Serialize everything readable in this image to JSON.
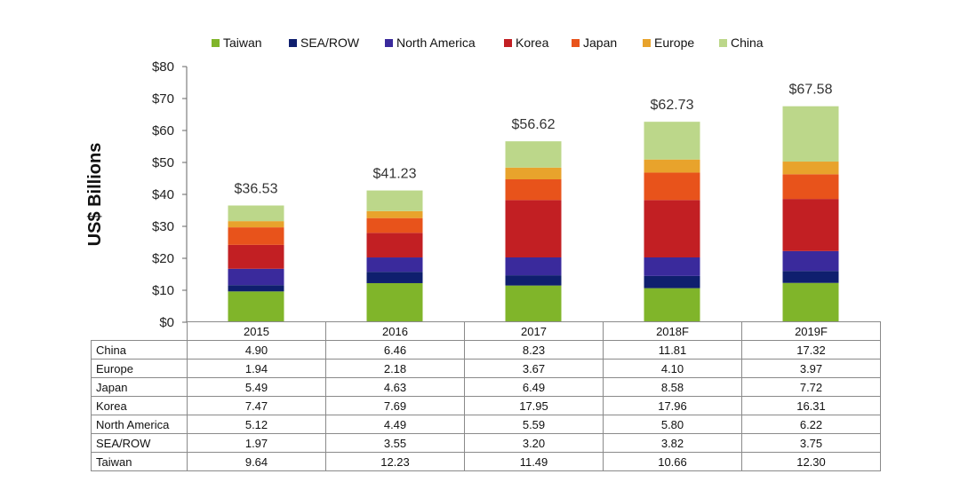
{
  "chart_data": {
    "type": "bar",
    "stacked": true,
    "categories": [
      "2015",
      "2016",
      "2017",
      "2018F",
      "2019F"
    ],
    "series": [
      {
        "name": "Taiwan",
        "color": "#80b52a",
        "values": [
          9.64,
          12.23,
          11.49,
          10.66,
          12.3
        ]
      },
      {
        "name": "SEA/ROW",
        "color": "#0f1f6e",
        "values": [
          1.97,
          3.55,
          3.2,
          3.82,
          3.75
        ]
      },
      {
        "name": "North America",
        "color": "#3a2a9c",
        "values": [
          5.12,
          4.49,
          5.59,
          5.8,
          6.22
        ]
      },
      {
        "name": "Korea",
        "color": "#c21f23",
        "values": [
          7.47,
          7.69,
          17.95,
          17.96,
          16.31
        ]
      },
      {
        "name": "Japan",
        "color": "#e8531b",
        "values": [
          5.49,
          4.63,
          6.49,
          8.58,
          7.72
        ]
      },
      {
        "name": "Europe",
        "color": "#e8a32c",
        "values": [
          1.94,
          2.18,
          3.67,
          4.1,
          3.97
        ]
      },
      {
        "name": "China",
        "color": "#bcd78a",
        "values": [
          4.9,
          6.46,
          8.23,
          11.81,
          17.32
        ]
      }
    ],
    "totals": [
      "$36.53",
      "$41.23",
      "$56.62",
      "$62.73",
      "$67.58"
    ],
    "ylabel": "US$ Billions",
    "ylim": [
      0,
      80
    ],
    "yticks": [
      {
        "value": 0,
        "label": "$0"
      },
      {
        "value": 10,
        "label": "$10"
      },
      {
        "value": 20,
        "label": "$20"
      },
      {
        "value": 30,
        "label": "$30"
      },
      {
        "value": 40,
        "label": "$40"
      },
      {
        "value": 50,
        "label": "$50"
      },
      {
        "value": 60,
        "label": "$60"
      },
      {
        "value": 70,
        "label": "$70"
      },
      {
        "value": 80,
        "label": "$80"
      }
    ],
    "legend_position": "top",
    "table_rows": [
      {
        "label": "China",
        "values": [
          "4.90",
          "6.46",
          "8.23",
          "11.81",
          "17.32"
        ]
      },
      {
        "label": "Europe",
        "values": [
          "1.94",
          "2.18",
          "3.67",
          "4.10",
          "3.97"
        ]
      },
      {
        "label": "Japan",
        "values": [
          "5.49",
          "4.63",
          "6.49",
          "8.58",
          "7.72"
        ]
      },
      {
        "label": "Korea",
        "values": [
          "7.47",
          "7.69",
          "17.95",
          "17.96",
          "16.31"
        ]
      },
      {
        "label": "North America",
        "values": [
          "5.12",
          "4.49",
          "5.59",
          "5.80",
          "6.22"
        ]
      },
      {
        "label": "SEA/ROW",
        "values": [
          "1.97",
          "3.55",
          "3.20",
          "3.82",
          "3.75"
        ]
      },
      {
        "label": "Taiwan",
        "values": [
          "9.64",
          "12.23",
          "11.49",
          "10.66",
          "12.30"
        ]
      }
    ]
  }
}
